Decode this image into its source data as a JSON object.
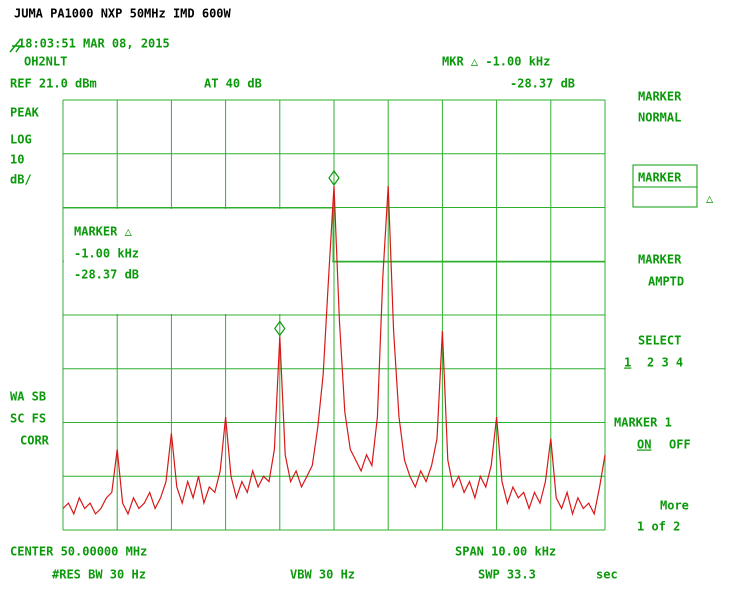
{
  "header": {
    "title": "JUMA PA1000 NXP 50MHz IMD   600W",
    "timestamp": "18:03:51 MAR 08, 2015",
    "callsign": "OH2NLT"
  },
  "status": {
    "marker_readout": "MKR △  -1.00  kHz",
    "marker_delta": "-28.37 dB",
    "ref_level": "REF 21.0  dBm",
    "attenuation": "AT 40  dB"
  },
  "left_labels": {
    "detector": "PEAK",
    "scale": "LOG",
    "per_div": "10",
    "unit": "dB/",
    "wa_sb": "WA SB",
    "sc_fs": "SC FS",
    "corr": "CORR"
  },
  "marker_box": {
    "title": "MARKER △",
    "freq": "-1.00  kHz",
    "delta": "-28.37 dB"
  },
  "softkeys": [
    {
      "line1": "MARKER",
      "line2": "NORMAL"
    },
    {
      "line1": "MARKER",
      "line2": "△"
    },
    {
      "line1": "MARKER",
      "line2": "AMPTD"
    },
    {
      "line1": "SELECT",
      "line2": "1",
      "line3": "2 3 4"
    },
    {
      "line1": "MARKER 1",
      "line2": "ON",
      "line3": "OFF"
    },
    {
      "line1": "More",
      "line2": "1 of 2"
    }
  ],
  "footer": {
    "center": "CENTER 50.00000  MHz",
    "span": "SPAN 10.00  kHz",
    "rbw": "#RES BW 30  Hz",
    "vbw": "VBW 30  Hz",
    "sweep": "SWP 33.3",
    "sweep_unit": "sec"
  },
  "trace": {
    "values": [
      -55,
      -54,
      -56,
      -53,
      -55,
      -54,
      -56,
      -55,
      -53,
      -52,
      -44,
      -54,
      -56,
      -53,
      -55,
      -54,
      -52,
      -55,
      -53,
      -50,
      -41,
      -51,
      -54,
      -50,
      -53,
      -49,
      -54,
      -51,
      -52,
      -48,
      -38,
      -49,
      -53,
      -50,
      -52,
      -48,
      -51,
      -49,
      -50,
      -44,
      -23,
      -45,
      -50,
      -48,
      -51,
      -49,
      -47,
      -40,
      -30,
      -12,
      5,
      -20,
      -37,
      -44,
      -46,
      -48,
      -45,
      -47,
      -38,
      -12,
      5,
      -22,
      -38,
      -46,
      -49,
      -51,
      -48,
      -50,
      -47,
      -42,
      -22,
      -46,
      -51,
      -49,
      -52,
      -50,
      -53,
      -49,
      -51,
      -47,
      -38,
      -50,
      -54,
      -51,
      -53,
      -52,
      -55,
      -52,
      -54,
      -50,
      -42,
      -53,
      -55,
      -52,
      -56,
      -53,
      -55,
      -54,
      -56,
      -51,
      -45
    ]
  }
}
